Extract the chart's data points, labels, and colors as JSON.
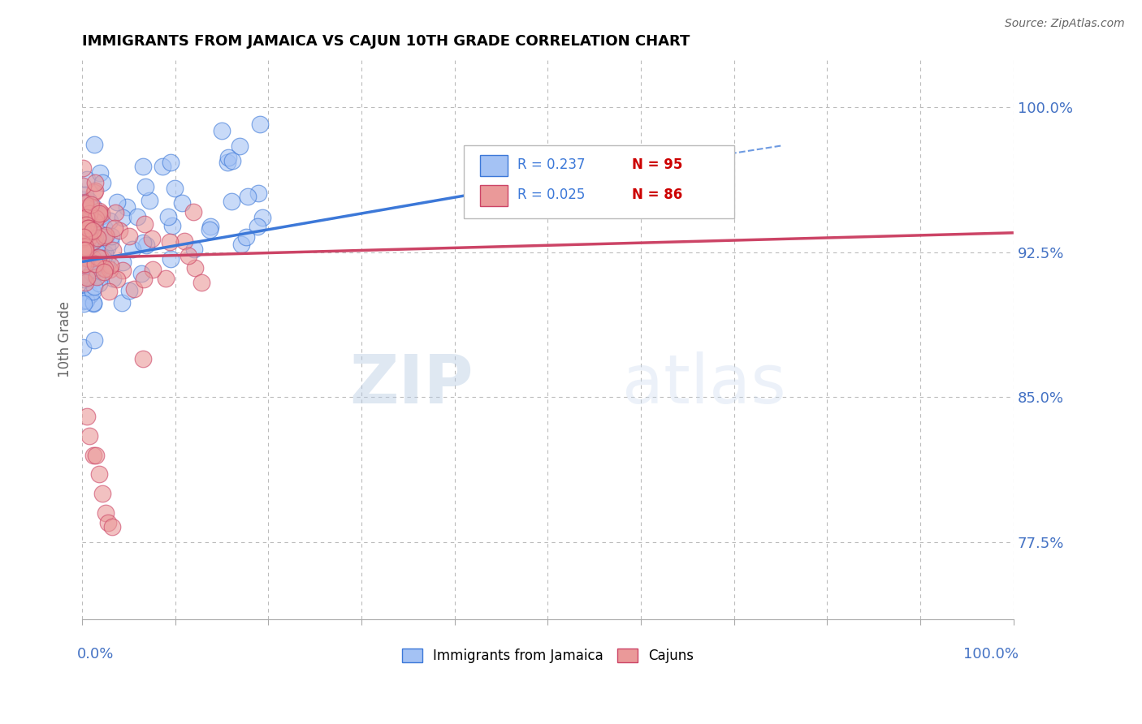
{
  "title": "IMMIGRANTS FROM JAMAICA VS CAJUN 10TH GRADE CORRELATION CHART",
  "source_text": "Source: ZipAtlas.com",
  "ylabel": "10th Grade",
  "xlim": [
    0.0,
    1.0
  ],
  "ylim": [
    0.735,
    1.025
  ],
  "yticks": [
    0.775,
    0.85,
    0.925,
    1.0
  ],
  "ytick_labels": [
    "77.5%",
    "85.0%",
    "92.5%",
    "100.0%"
  ],
  "legend_r1": "R = 0.237",
  "legend_n1": "N = 95",
  "legend_r2": "R = 0.025",
  "legend_n2": "N = 86",
  "legend_label1": "Immigrants from Jamaica",
  "legend_label2": "Cajuns",
  "blue_color": "#a4c2f4",
  "pink_color": "#ea9999",
  "blue_edge_color": "#3c78d8",
  "pink_edge_color": "#cc4466",
  "trendline1_color": "#3c78d8",
  "trendline2_color": "#cc4466",
  "background_color": "#ffffff",
  "grid_color": "#bbbbbb",
  "title_color": "#000000",
  "axis_label_color": "#4472c4",
  "r_color": "#3c78d8",
  "n_color": "#cc0000",
  "watermark_color": "#ccd9f0"
}
